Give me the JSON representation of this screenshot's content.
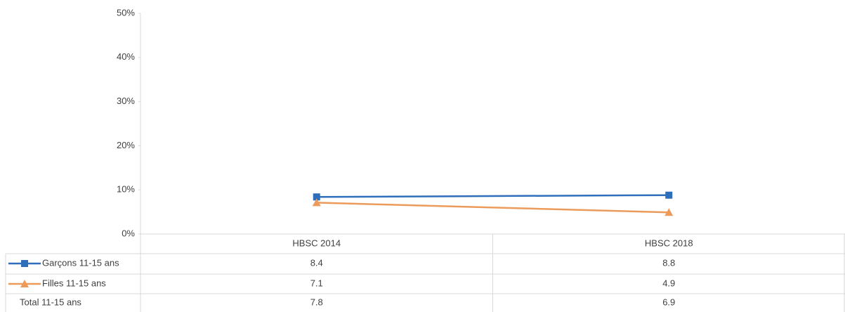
{
  "chart_data": {
    "type": "line",
    "categories": [
      "HBSC 2014",
      "HBSC 2018"
    ],
    "series": [
      {
        "name": "Garçons 11-15 ans",
        "color": "#2f6eba",
        "marker": "square",
        "values": [
          8.4,
          8.8
        ]
      },
      {
        "name": "Filles 11-15 ans",
        "color": "#ed9b5a",
        "marker": "triangle",
        "values": [
          7.1,
          4.9
        ]
      },
      {
        "name": "Total 11-15 ans",
        "values": [
          7.8,
          6.9
        ]
      }
    ],
    "ylim": [
      0,
      50
    ],
    "yticks": [
      {
        "value": 0,
        "label": "0%"
      },
      {
        "value": 10,
        "label": "10%"
      },
      {
        "value": 20,
        "label": "20%"
      },
      {
        "value": 30,
        "label": "30%"
      },
      {
        "value": 40,
        "label": "40%"
      },
      {
        "value": 50,
        "label": "50%"
      }
    ],
    "grid": false,
    "data_table": true
  }
}
